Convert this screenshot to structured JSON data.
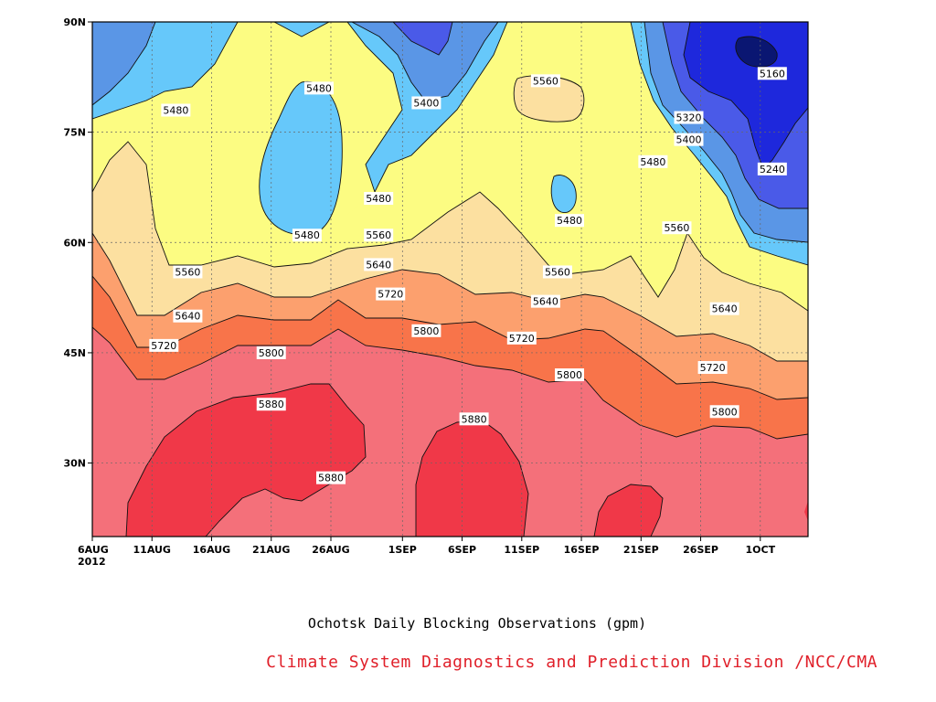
{
  "chart_data": {
    "type": "heatmap",
    "subtype": "filled-contour",
    "title": "Ochotsk Daily Blocking Observations (gpm)",
    "credit": "Climate System Diagnostics and Prediction Division /NCC/CMA",
    "x_ticks": [
      "6AUG",
      "11AUG",
      "16AUG",
      "21AUG",
      "26AUG",
      "1SEP",
      "6SEP",
      "11SEP",
      "16SEP",
      "21SEP",
      "26SEP",
      "1OCT"
    ],
    "x_year": "2012",
    "y_ticks": [
      "30N",
      "45N",
      "60N",
      "75N",
      "90N"
    ],
    "y_tick_values": [
      30,
      45,
      60,
      75,
      90
    ],
    "ylim": [
      20,
      90
    ],
    "x_range": [
      "2012-08-06",
      "2012-10-05"
    ],
    "grid": true,
    "contour_levels": [
      5160,
      5240,
      5320,
      5400,
      5480,
      5560,
      5640,
      5720,
      5800,
      5880
    ],
    "fill_colors": [
      "#0a1672",
      "#1e28dc",
      "#4a5ae8",
      "#5a96e6",
      "#66c8fa",
      "#fcfc82",
      "#fce0a0",
      "#fca06e",
      "#f8744a",
      "#f4707a",
      "#f03848"
    ],
    "contour_labels": [
      {
        "value": "5480",
        "date": "2012-08-13",
        "lat": 78
      },
      {
        "value": "5480",
        "date": "2012-08-25",
        "lat": 81
      },
      {
        "value": "5400",
        "date": "2012-09-03",
        "lat": 79
      },
      {
        "value": "5560",
        "date": "2012-09-13",
        "lat": 82
      },
      {
        "value": "5160",
        "date": "2012-10-02",
        "lat": 83
      },
      {
        "value": "5320",
        "date": "2012-09-25",
        "lat": 77
      },
      {
        "value": "5400",
        "date": "2012-09-25",
        "lat": 74
      },
      {
        "value": "5480",
        "date": "2012-09-22",
        "lat": 71
      },
      {
        "value": "5240",
        "date": "2012-10-02",
        "lat": 70
      },
      {
        "value": "5480",
        "date": "2012-08-30",
        "lat": 66
      },
      {
        "value": "5480",
        "date": "2012-09-15",
        "lat": 63
      },
      {
        "value": "5480",
        "date": "2012-08-24",
        "lat": 61
      },
      {
        "value": "5560",
        "date": "2012-08-30",
        "lat": 61
      },
      {
        "value": "5560",
        "date": "2012-09-24",
        "lat": 62
      },
      {
        "value": "5560",
        "date": "2012-08-14",
        "lat": 56
      },
      {
        "value": "5640",
        "date": "2012-08-30",
        "lat": 57
      },
      {
        "value": "5560",
        "date": "2012-09-14",
        "lat": 56
      },
      {
        "value": "5720",
        "date": "2012-08-31",
        "lat": 53
      },
      {
        "value": "5640",
        "date": "2012-09-13",
        "lat": 52
      },
      {
        "value": "5640",
        "date": "2012-09-28",
        "lat": 51
      },
      {
        "value": "5640",
        "date": "2012-08-14",
        "lat": 50
      },
      {
        "value": "5800",
        "date": "2012-09-03",
        "lat": 48
      },
      {
        "value": "5720",
        "date": "2012-09-11",
        "lat": 47
      },
      {
        "value": "5720",
        "date": "2012-08-12",
        "lat": 46
      },
      {
        "value": "5800",
        "date": "2012-08-21",
        "lat": 45
      },
      {
        "value": "5800",
        "date": "2012-09-15",
        "lat": 42
      },
      {
        "value": "5720",
        "date": "2012-09-27",
        "lat": 43
      },
      {
        "value": "5880",
        "date": "2012-08-21",
        "lat": 38
      },
      {
        "value": "5800",
        "date": "2012-09-28",
        "lat": 37
      },
      {
        "value": "5880",
        "date": "2012-09-07",
        "lat": 36
      },
      {
        "value": "5880",
        "date": "2012-08-26",
        "lat": 28
      }
    ]
  }
}
